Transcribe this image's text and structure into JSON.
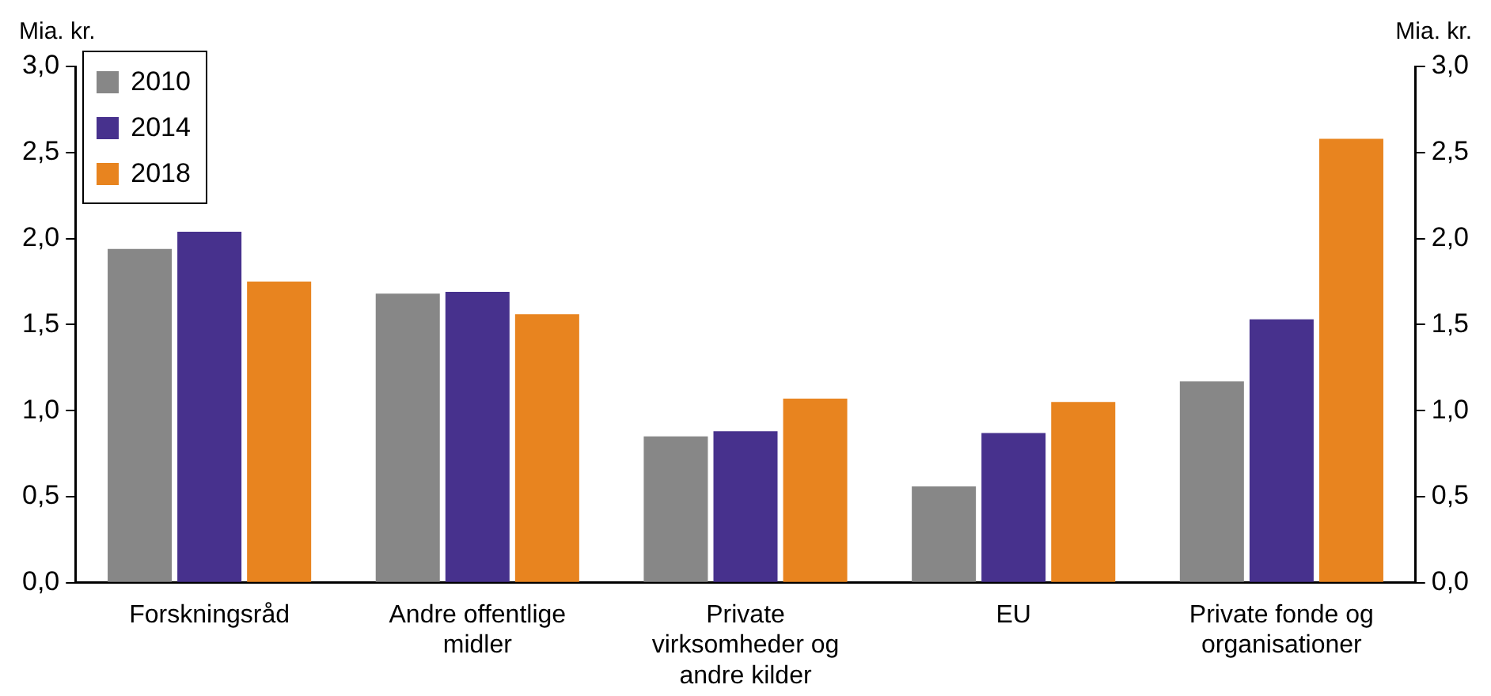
{
  "chart_data": {
    "type": "bar",
    "ylabel": "Mia. kr.",
    "y2label": "Mia. kr.",
    "categories": [
      "Forskningsråd",
      "Andre offentlige midler",
      "Private virksomheder og andre kilder",
      "EU",
      "Private fonde og organisationer"
    ],
    "series": [
      {
        "name": "2010",
        "color": "#878787",
        "values": [
          1.94,
          1.68,
          0.85,
          0.56,
          1.17
        ]
      },
      {
        "name": "2014",
        "color": "#47318d",
        "values": [
          2.04,
          1.69,
          0.88,
          0.87,
          1.53
        ]
      },
      {
        "name": "2018",
        "color": "#e8841f",
        "values": [
          1.75,
          1.56,
          1.07,
          1.05,
          2.58
        ]
      }
    ],
    "ylim": [
      0,
      3
    ],
    "yticks": [
      {
        "value": 0,
        "label": "0,0"
      },
      {
        "value": 0.5,
        "label": "0,5"
      },
      {
        "value": 1,
        "label": "1,0"
      },
      {
        "value": 1.5,
        "label": "1,5"
      },
      {
        "value": 2,
        "label": "2,0"
      },
      {
        "value": 2.5,
        "label": "2,5"
      },
      {
        "value": 3,
        "label": "3,0"
      }
    ],
    "y2lim": [
      0,
      3
    ],
    "y2ticks": [
      {
        "value": 0,
        "label": "0,0"
      },
      {
        "value": 0.5,
        "label": "0,5"
      },
      {
        "value": 1,
        "label": "1,0"
      },
      {
        "value": 1.5,
        "label": "1,5"
      },
      {
        "value": 2,
        "label": "2,0"
      },
      {
        "value": 2.5,
        "label": "2,5"
      },
      {
        "value": 3,
        "label": "3,0"
      }
    ],
    "grid": false,
    "legend": "top left"
  }
}
